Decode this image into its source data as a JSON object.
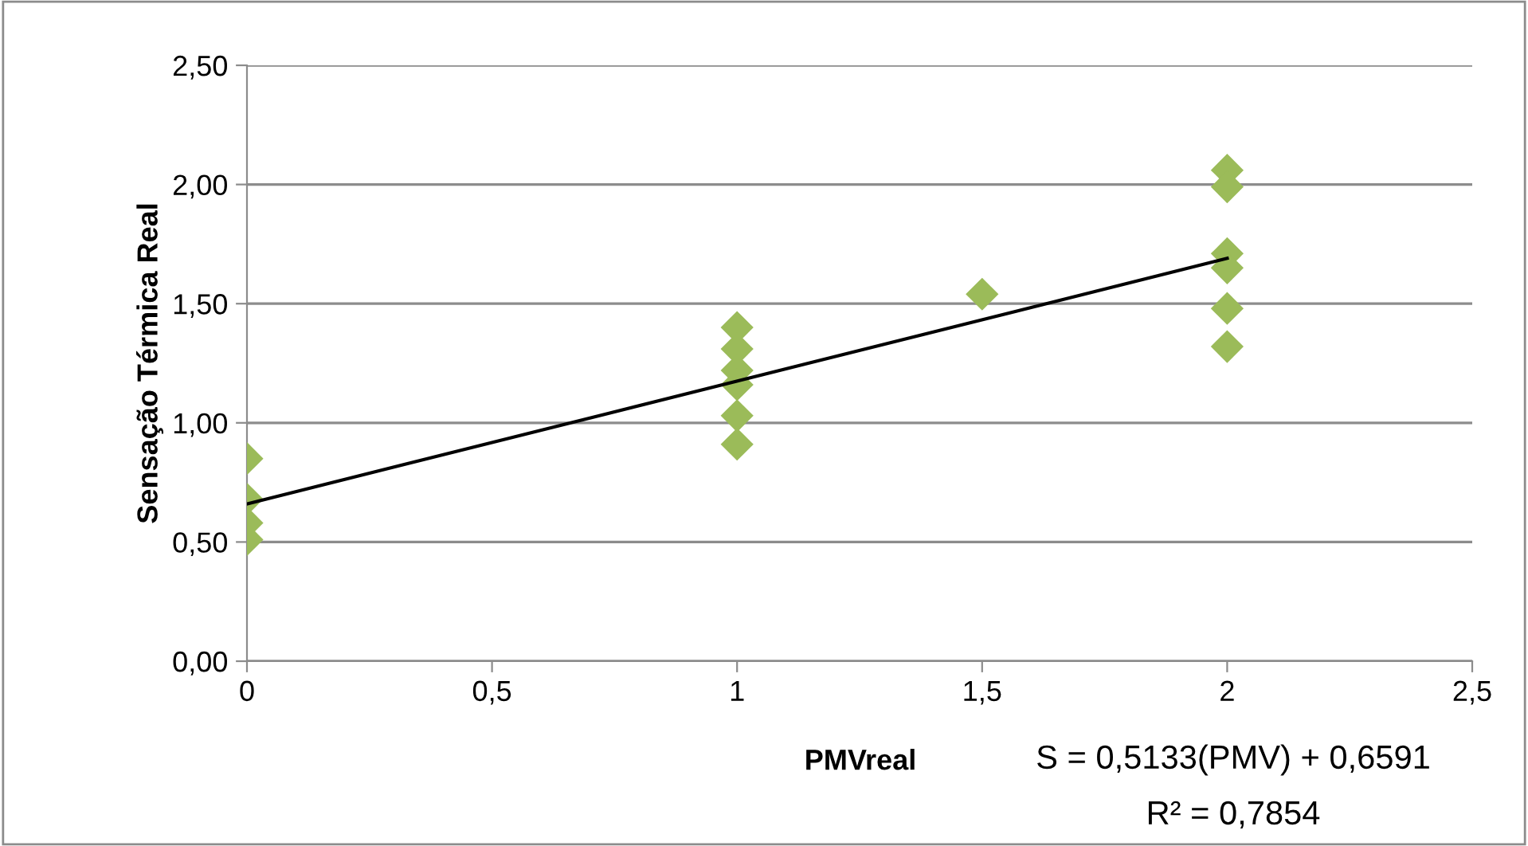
{
  "chart_data": {
    "type": "scatter",
    "xlabel": "PMVreal",
    "ylabel": "Sensação Térmica Real",
    "xlim": [
      0,
      2.5
    ],
    "xticks": [
      0,
      {
        "value": 0.5,
        "label": "0,5"
      },
      1,
      {
        "value": 1.5,
        "label": "1,5"
      },
      2,
      {
        "value": 2.5,
        "label": "2,5"
      }
    ],
    "ylim": [
      0,
      2.5
    ],
    "yticks": [
      {
        "value": 0,
        "label": "0,00"
      },
      {
        "value": 0.5,
        "label": "0,50"
      },
      {
        "value": 1,
        "label": "1,00"
      },
      {
        "value": 1.5,
        "label": "1,50"
      },
      {
        "value": 2,
        "label": "2,00"
      },
      {
        "value": 2.5,
        "label": "2,50"
      }
    ],
    "grid": "y",
    "marker": "diamond",
    "series": [
      {
        "color": "#9bbb59",
        "x": [
          0,
          0,
          0,
          0,
          1,
          1,
          1,
          1,
          1,
          1,
          1.5,
          2,
          2,
          2,
          2,
          2,
          2
        ],
        "values": [
          0.85,
          0.68,
          0.58,
          0.51,
          1.4,
          1.31,
          1.22,
          1.16,
          1.03,
          0.91,
          1.54,
          2.06,
          1.99,
          1.71,
          1.65,
          1.48,
          1.32
        ]
      },
      {
        "type": "line",
        "color": "#000000",
        "marker": "none",
        "x": [
          0,
          2
        ],
        "values": [
          0.66,
          1.69
        ]
      }
    ],
    "annotations": [
      "S = 0,5133(PMV) + 0,6591",
      "R² = 0,7854"
    ]
  }
}
